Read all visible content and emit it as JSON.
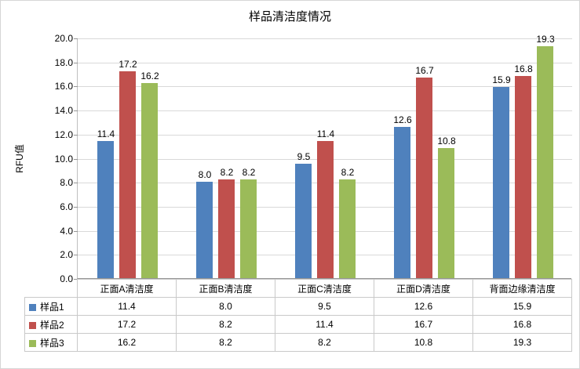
{
  "chart_data": {
    "type": "bar",
    "title": "样品清洁度情况",
    "xlabel": "",
    "ylabel": "RFU值",
    "categories": [
      "正面A清洁度",
      "正面B清洁度",
      "正面C清洁度",
      "正面D清洁度",
      "背面边缘清洁度"
    ],
    "series": [
      {
        "name": "样品1",
        "color": "#4F81BD",
        "values": [
          11.4,
          8.0,
          9.5,
          12.6,
          15.9
        ]
      },
      {
        "name": "样品2",
        "color": "#C0504D",
        "values": [
          17.2,
          8.2,
          11.4,
          16.7,
          16.8
        ]
      },
      {
        "name": "样品3",
        "color": "#9BBB59",
        "values": [
          16.2,
          8.2,
          8.2,
          10.8,
          19.3
        ]
      }
    ],
    "ylim": [
      0,
      20
    ],
    "ytick_step": 2,
    "ytick_format_decimals": 1,
    "grid": true,
    "data_labels": true,
    "legend_position": "table-left",
    "colors": {
      "gridline": "#d9d9d9",
      "axis": "#969696",
      "table_border": "#c9c9c9"
    }
  }
}
